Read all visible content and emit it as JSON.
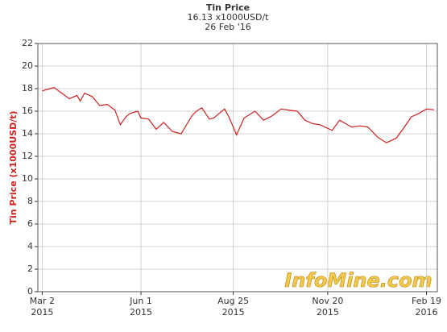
{
  "chart_data": {
    "type": "line",
    "title": "Tin Price",
    "subtitle": "16.13 x1000USD/t",
    "date_label": "26 Feb '16",
    "y_label": "Tin Price (x1000USD/t)",
    "watermark": "InfoMine.com",
    "color": "#cc2222",
    "grid": true,
    "x": [
      "2015-03-02",
      "2015-03-09",
      "2015-03-13",
      "2015-03-20",
      "2015-03-27",
      "2015-04-03",
      "2015-04-06",
      "2015-04-10",
      "2015-04-17",
      "2015-04-24",
      "2015-05-01",
      "2015-05-08",
      "2015-05-13",
      "2015-05-18",
      "2015-05-22",
      "2015-05-29",
      "2015-06-01",
      "2015-06-08",
      "2015-06-15",
      "2015-06-22",
      "2015-06-30",
      "2015-07-08",
      "2015-07-18",
      "2015-07-22",
      "2015-07-27",
      "2015-08-03",
      "2015-08-07",
      "2015-08-17",
      "2015-08-21",
      "2015-08-28",
      "2015-09-04",
      "2015-09-14",
      "2015-09-22",
      "2015-09-30",
      "2015-10-08",
      "2015-10-15",
      "2015-10-23",
      "2015-10-30",
      "2015-11-06",
      "2015-11-13",
      "2015-11-24",
      "2015-12-01",
      "2015-12-12",
      "2015-12-20",
      "2015-12-27",
      "2016-01-05",
      "2016-01-13",
      "2016-01-22",
      "2016-01-29",
      "2016-02-05",
      "2016-02-12",
      "2016-02-19",
      "2016-02-26"
    ],
    "values": [
      17.8,
      18.0,
      18.1,
      17.6,
      17.1,
      17.4,
      16.9,
      17.6,
      17.3,
      16.5,
      16.6,
      16.1,
      14.8,
      15.5,
      15.8,
      16.0,
      15.4,
      15.3,
      14.4,
      15.0,
      14.2,
      14.0,
      15.6,
      16.0,
      16.3,
      15.3,
      15.4,
      16.2,
      15.5,
      13.9,
      15.4,
      16.0,
      15.2,
      15.6,
      16.2,
      16.1,
      16.0,
      15.2,
      14.9,
      14.8,
      14.3,
      15.2,
      14.6,
      14.7,
      14.6,
      13.7,
      13.2,
      13.6,
      14.5,
      15.5,
      15.8,
      16.2,
      16.13
    ],
    "xlim": [
      "2015-02-26",
      "2016-02-29"
    ],
    "xticks": [
      {
        "value": "2015-03-02",
        "label": [
          "Mar 2",
          "2015"
        ]
      },
      {
        "value": "2015-06-01",
        "label": [
          "Jun 1",
          "2015"
        ]
      },
      {
        "value": "2015-08-25",
        "label": [
          "Aug 25",
          "2015"
        ]
      },
      {
        "value": "2015-11-20",
        "label": [
          "Nov 20",
          "2015"
        ]
      },
      {
        "value": "2016-02-19",
        "label": [
          "Feb 19",
          "2016"
        ]
      }
    ],
    "ylim": [
      0,
      22
    ],
    "yticks": [
      0,
      2,
      4,
      6,
      8,
      10,
      12,
      14,
      16,
      18,
      20,
      22
    ]
  }
}
